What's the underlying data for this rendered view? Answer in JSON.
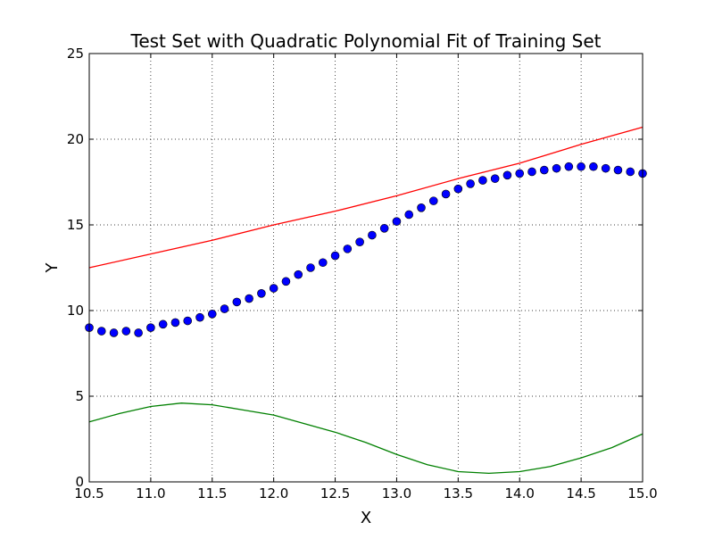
{
  "chart_data": {
    "type": "scatter",
    "title": "Test Set with Quadratic Polynomial Fit of Training Set",
    "xlabel": "X",
    "ylabel": "Y",
    "xlim": [
      10.5,
      15.0
    ],
    "ylim": [
      0,
      25
    ],
    "grid": true,
    "x_ticks": [
      "10.5",
      "11.0",
      "11.5",
      "12.0",
      "12.5",
      "13.0",
      "13.5",
      "14.0",
      "14.5",
      "15.0"
    ],
    "y_ticks": [
      "0",
      "5",
      "10",
      "15",
      "20",
      "25"
    ],
    "colors": {
      "points": "#0000ff",
      "fit": "#ff0000",
      "residual": "#008000"
    },
    "series": [
      {
        "kind": "scatter",
        "color": "#0000ff",
        "x": [
          10.5,
          10.6,
          10.7,
          10.8,
          10.9,
          11.0,
          11.1,
          11.2,
          11.3,
          11.4,
          11.5,
          11.6,
          11.7,
          11.8,
          11.9,
          12.0,
          12.1,
          12.2,
          12.3,
          12.4,
          12.5,
          12.6,
          12.7,
          12.8,
          12.9,
          13.0,
          13.1,
          13.2,
          13.3,
          13.4,
          13.5,
          13.6,
          13.7,
          13.8,
          13.9,
          14.0,
          14.1,
          14.2,
          14.3,
          14.4,
          14.5,
          14.6,
          14.7,
          14.8,
          14.9,
          15.0
        ],
        "y": [
          9.0,
          8.8,
          8.7,
          8.8,
          8.7,
          9.0,
          9.2,
          9.3,
          9.4,
          9.6,
          9.8,
          10.1,
          10.5,
          10.7,
          11.0,
          11.3,
          11.7,
          12.1,
          12.5,
          12.8,
          13.2,
          13.6,
          14.0,
          14.4,
          14.8,
          15.2,
          15.6,
          16.0,
          16.4,
          16.8,
          17.1,
          17.4,
          17.6,
          17.7,
          17.9,
          18.0,
          18.1,
          18.2,
          18.3,
          18.4,
          18.4,
          18.4,
          18.3,
          18.2,
          18.1,
          18.0
        ]
      },
      {
        "kind": "line",
        "color": "#ff0000",
        "x": [
          10.5,
          11.0,
          11.5,
          12.0,
          12.5,
          13.0,
          13.5,
          14.0,
          14.5,
          15.0
        ],
        "y": [
          12.5,
          13.3,
          14.1,
          15.0,
          15.8,
          16.7,
          17.7,
          18.6,
          19.7,
          20.7
        ]
      },
      {
        "kind": "line",
        "color": "#008000",
        "x": [
          10.5,
          10.75,
          11.0,
          11.25,
          11.5,
          11.75,
          12.0,
          12.25,
          12.5,
          12.75,
          13.0,
          13.25,
          13.5,
          13.75,
          14.0,
          14.25,
          14.5,
          14.75,
          15.0
        ],
        "y": [
          3.5,
          4.0,
          4.4,
          4.6,
          4.5,
          4.2,
          3.9,
          3.4,
          2.9,
          2.3,
          1.6,
          1.0,
          0.6,
          0.5,
          0.6,
          0.9,
          1.4,
          2.0,
          2.8
        ]
      }
    ]
  }
}
